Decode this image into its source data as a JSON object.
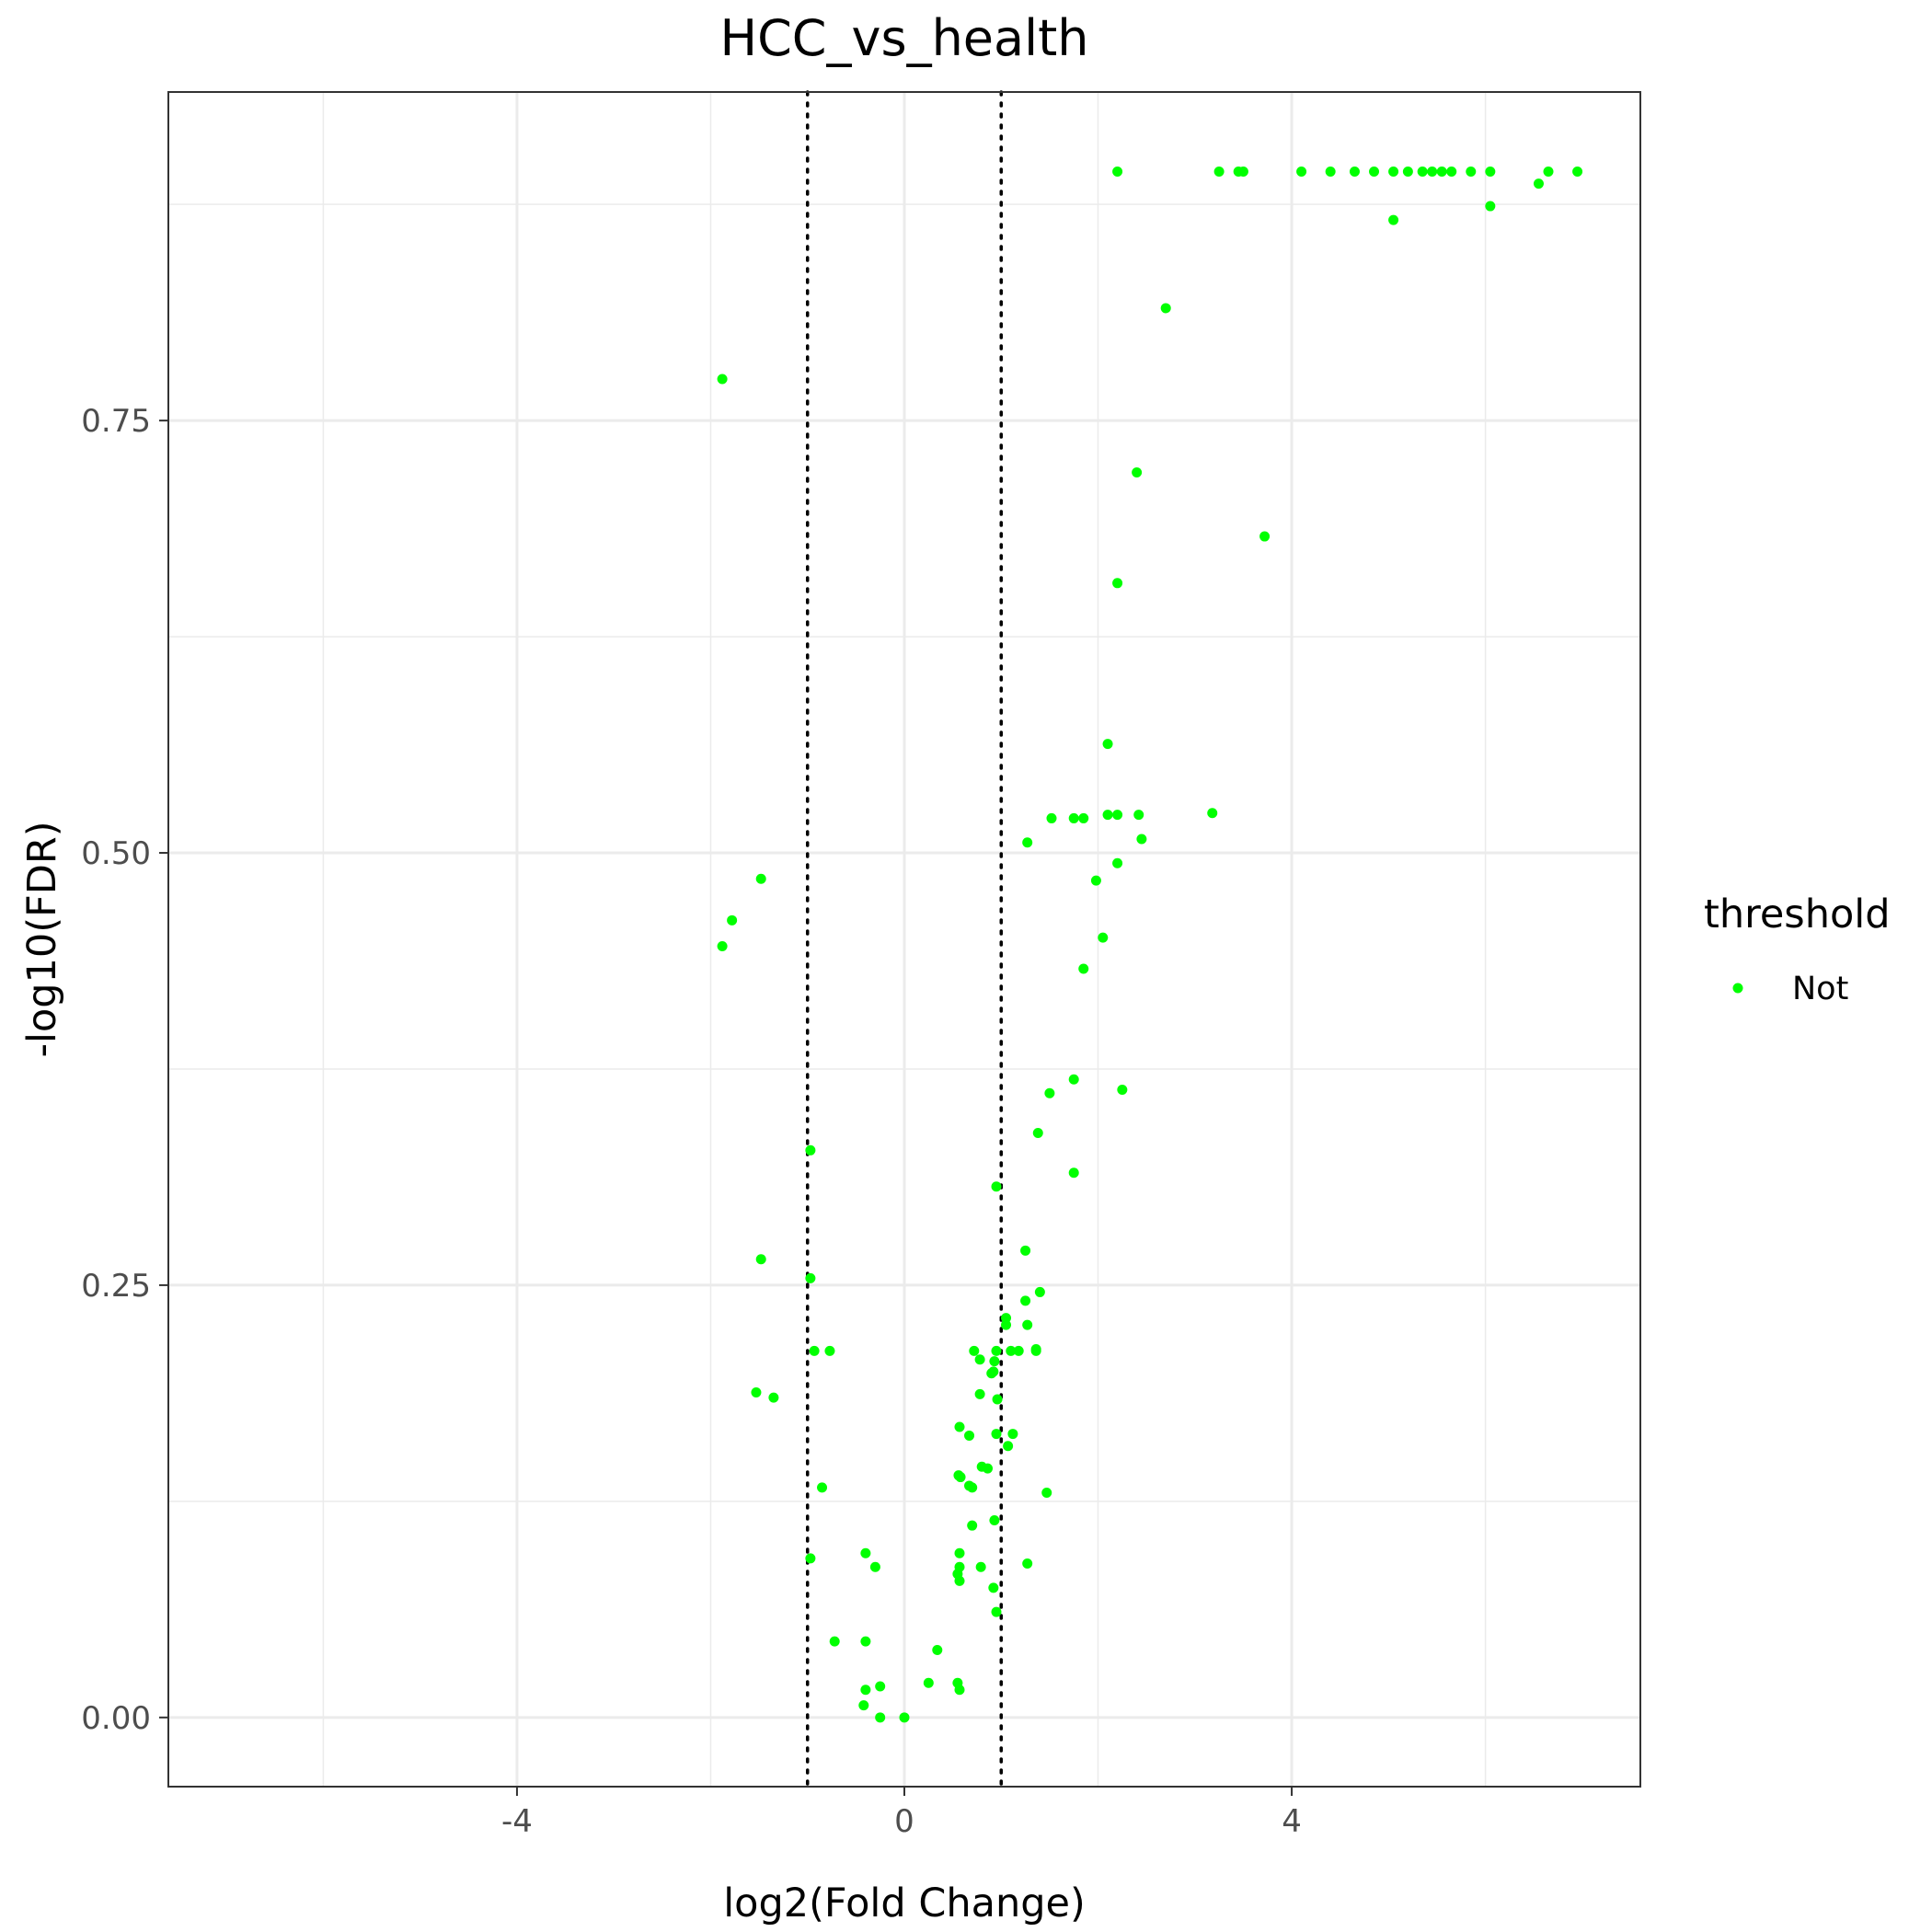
{
  "chart_data": {
    "type": "scatter",
    "title": "HCC_vs_health",
    "xlabel": "log2(Fold Change)",
    "ylabel": "-log10(FDR)",
    "xlim": [
      -7.6,
      7.6
    ],
    "ylim": [
      -0.04,
      0.94
    ],
    "x_ticks": [
      -4,
      0,
      4
    ],
    "x_tick_labels": [
      "-4",
      "0",
      "4"
    ],
    "y_ticks": [
      0,
      0.25,
      0.5,
      0.75
    ],
    "y_tick_labels": [
      "0.00",
      "0.25",
      "0.50",
      "0.75"
    ],
    "x_minor_gridlines": [
      -6,
      -2,
      2,
      6
    ],
    "y_minor_gridlines": [
      0.125,
      0.375,
      0.625,
      0.875
    ],
    "threshold_lines_x": [
      -1,
      1
    ],
    "grid": true,
    "legend": {
      "title": "threshold",
      "placement": "right",
      "entries": [
        {
          "label": "Not",
          "color": "#00ff00"
        }
      ]
    },
    "point_color": "#00ff00",
    "series": [
      {
        "name": "Not",
        "points": [
          [
            2.2,
            0.894
          ],
          [
            3.25,
            0.894
          ],
          [
            3.45,
            0.894
          ],
          [
            3.5,
            0.894
          ],
          [
            4.1,
            0.894
          ],
          [
            4.4,
            0.894
          ],
          [
            4.65,
            0.894
          ],
          [
            4.85,
            0.894
          ],
          [
            5.05,
            0.894
          ],
          [
            5.2,
            0.894
          ],
          [
            5.35,
            0.894
          ],
          [
            5.45,
            0.894
          ],
          [
            5.55,
            0.894
          ],
          [
            5.65,
            0.894
          ],
          [
            5.85,
            0.894
          ],
          [
            6.05,
            0.894
          ],
          [
            6.65,
            0.894
          ],
          [
            6.95,
            0.894
          ],
          [
            6.55,
            0.887
          ],
          [
            6.05,
            0.874
          ],
          [
            5.05,
            0.866
          ],
          [
            2.7,
            0.815
          ],
          [
            -1.88,
            0.774
          ],
          [
            2.4,
            0.72
          ],
          [
            3.72,
            0.683
          ],
          [
            2.2,
            0.656
          ],
          [
            2.1,
            0.563
          ],
          [
            3.18,
            0.523
          ],
          [
            2.1,
            0.522
          ],
          [
            2.2,
            0.522
          ],
          [
            2.42,
            0.522
          ],
          [
            1.52,
            0.52
          ],
          [
            1.75,
            0.52
          ],
          [
            1.85,
            0.52
          ],
          [
            2.45,
            0.508
          ],
          [
            1.27,
            0.506
          ],
          [
            2.2,
            0.494
          ],
          [
            1.98,
            0.484
          ],
          [
            -1.48,
            0.485
          ],
          [
            -1.78,
            0.461
          ],
          [
            -1.88,
            0.446
          ],
          [
            2.05,
            0.451
          ],
          [
            1.85,
            0.433
          ],
          [
            1.75,
            0.369
          ],
          [
            2.25,
            0.363
          ],
          [
            1.5,
            0.361
          ],
          [
            1.38,
            0.338
          ],
          [
            -0.97,
            0.328
          ],
          [
            1.75,
            0.315
          ],
          [
            0.95,
            0.307
          ],
          [
            1.25,
            0.27
          ],
          [
            -1.48,
            0.265
          ],
          [
            -0.97,
            0.254
          ],
          [
            1.4,
            0.246
          ],
          [
            1.25,
            0.241
          ],
          [
            1.05,
            0.231
          ],
          [
            1.05,
            0.227
          ],
          [
            1.27,
            0.227
          ],
          [
            -0.93,
            0.212
          ],
          [
            -0.77,
            0.212
          ],
          [
            0.72,
            0.212
          ],
          [
            0.95,
            0.212
          ],
          [
            1.1,
            0.212
          ],
          [
            1.18,
            0.212
          ],
          [
            1.36,
            0.212
          ],
          [
            1.36,
            0.213
          ],
          [
            0.78,
            0.207
          ],
          [
            0.93,
            0.206
          ],
          [
            0.92,
            0.2
          ],
          [
            0.9,
            0.199
          ],
          [
            -1.53,
            0.188
          ],
          [
            -1.35,
            0.185
          ],
          [
            0.78,
            0.187
          ],
          [
            0.96,
            0.184
          ],
          [
            0.57,
            0.168
          ],
          [
            0.67,
            0.163
          ],
          [
            0.95,
            0.164
          ],
          [
            1.12,
            0.164
          ],
          [
            1.07,
            0.157
          ],
          [
            0.8,
            0.145
          ],
          [
            0.86,
            0.144
          ],
          [
            0.56,
            0.14
          ],
          [
            0.58,
            0.139
          ],
          [
            0.67,
            0.134
          ],
          [
            0.7,
            0.133
          ],
          [
            -0.85,
            0.133
          ],
          [
            1.47,
            0.13
          ],
          [
            0.93,
            0.114
          ],
          [
            0.7,
            0.111
          ],
          [
            -0.4,
            0.095
          ],
          [
            0.57,
            0.095
          ],
          [
            -0.97,
            0.092
          ],
          [
            1.27,
            0.089
          ],
          [
            -0.3,
            0.087
          ],
          [
            0.57,
            0.087
          ],
          [
            0.79,
            0.087
          ],
          [
            0.55,
            0.083
          ],
          [
            0.57,
            0.079
          ],
          [
            0.92,
            0.075
          ],
          [
            0.95,
            0.061
          ],
          [
            -0.72,
            0.044
          ],
          [
            -0.4,
            0.044
          ],
          [
            0.34,
            0.039
          ],
          [
            0.25,
            0.02
          ],
          [
            0.55,
            0.02
          ],
          [
            0.57,
            0.016
          ],
          [
            -0.25,
            0.018
          ],
          [
            -0.4,
            0.016
          ],
          [
            -0.42,
            0.007
          ],
          [
            -0.25,
            0.0
          ],
          [
            0.0,
            0.0
          ]
        ]
      }
    ]
  }
}
